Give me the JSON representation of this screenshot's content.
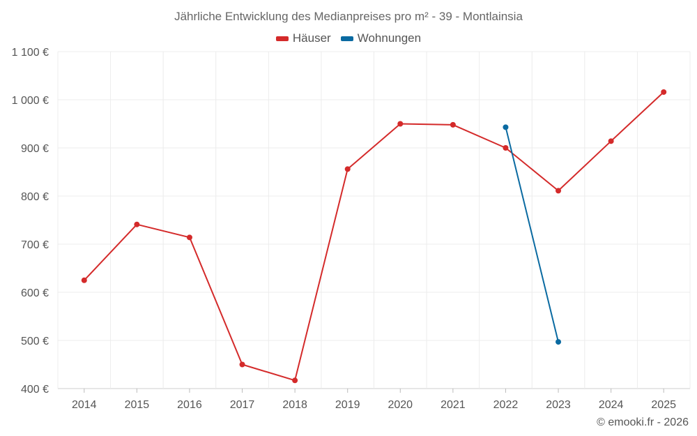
{
  "chart_data": {
    "type": "line",
    "title": "Jährliche Entwicklung des Medianpreises pro m² - 39 - Montlainsia",
    "x": [
      "2014",
      "2015",
      "2016",
      "2017",
      "2018",
      "2019",
      "2020",
      "2021",
      "2022",
      "2023",
      "2024",
      "2025"
    ],
    "ylim": [
      400,
      1100
    ],
    "yticks": [
      400,
      500,
      600,
      700,
      800,
      900,
      1000,
      1100
    ],
    "ytick_labels": [
      "400 €",
      "500 €",
      "600 €",
      "700 €",
      "800 €",
      "900 €",
      "1 000 €",
      "1 100 €"
    ],
    "grid": true,
    "legend_position": "top-center",
    "series": [
      {
        "name": "Häuser",
        "color": "#d42a2a",
        "values": [
          625,
          741,
          714,
          450,
          417,
          856,
          950,
          948,
          900,
          811,
          914,
          1016
        ]
      },
      {
        "name": "Wohnungen",
        "color": "#0a6aa1",
        "values": [
          null,
          null,
          null,
          null,
          null,
          null,
          null,
          null,
          943,
          497,
          null,
          null
        ]
      }
    ]
  },
  "credit": "© emooki.fr - 2026"
}
